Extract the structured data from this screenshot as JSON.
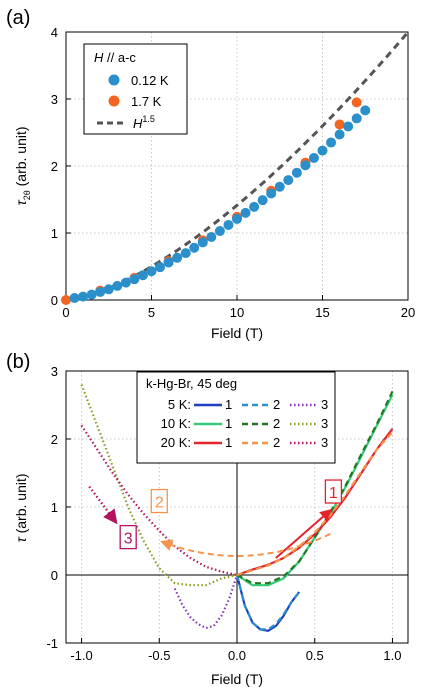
{
  "chart_data": [
    {
      "panel": "(a)",
      "type": "scatter",
      "xlabel": "Field (T)",
      "ylabel_symbol": "τ",
      "ylabel_sub": "2θ",
      "ylabel_unit": " (arb. unit)",
      "xlim": [
        0,
        20
      ],
      "ylim": [
        0,
        4
      ],
      "xticks": [
        "0",
        "5",
        "10",
        "15",
        "20"
      ],
      "yticks": [
        "0",
        "1",
        "2",
        "3",
        "4"
      ],
      "grid": true,
      "legend_position": "top-left",
      "legend_title_italic": "H",
      "legend_title_rest": " // a-c",
      "series": [
        {
          "name": "0.12 K",
          "color": "#2A8FCB",
          "x": [
            0.5,
            1.0,
            1.5,
            2.0,
            2.5,
            3.0,
            3.5,
            4.0,
            4.5,
            5.0,
            5.5,
            6.0,
            6.5,
            7.0,
            7.5,
            8.0,
            8.5,
            9.0,
            9.5,
            10.0,
            10.5,
            11.0,
            11.5,
            12.0,
            12.5,
            13.0,
            13.5,
            14.0,
            14.5,
            15.0,
            15.5,
            16.0,
            16.5,
            17.0,
            17.5
          ],
          "y": [
            0.03,
            0.05,
            0.08,
            0.12,
            0.16,
            0.21,
            0.26,
            0.31,
            0.37,
            0.43,
            0.49,
            0.56,
            0.63,
            0.7,
            0.78,
            0.86,
            0.94,
            1.03,
            1.12,
            1.21,
            1.3,
            1.39,
            1.49,
            1.59,
            1.69,
            1.79,
            1.9,
            2.01,
            2.12,
            2.23,
            2.35,
            2.47,
            2.59,
            2.71,
            2.83
          ]
        },
        {
          "name": "1.7 K",
          "color": "#F26522",
          "x": [
            0.0,
            2.0,
            4.0,
            6.0,
            8.0,
            10.0,
            12.0,
            14.0,
            16.0,
            17.0
          ],
          "y": [
            0.0,
            0.14,
            0.33,
            0.58,
            0.89,
            1.24,
            1.63,
            2.05,
            2.62,
            2.95
          ]
        },
        {
          "name": "H",
          "name_sup": "1.5",
          "color": "#555555",
          "style": "dashed",
          "function": "0.0447*x^1.5"
        }
      ]
    },
    {
      "panel": "(b)",
      "type": "line",
      "xlabel": "Field (T)",
      "ylabel_symbol": "τ",
      "ylabel_unit": " (arb. unit)",
      "xlim": [
        -1.1,
        1.1
      ],
      "ylim": [
        -1,
        3
      ],
      "xticks": [
        "-1.0",
        "-0.5",
        "0.0",
        "0.5",
        "1.0"
      ],
      "yticks": [
        "-1",
        "0",
        "1",
        "2",
        "3"
      ],
      "grid": true,
      "legend_position": "top-center",
      "legend_title": "k-Hg-Br, 45 deg",
      "legend_rows": [
        {
          "temp": "5 K:",
          "labels": [
            "1",
            "2",
            "3"
          ]
        },
        {
          "temp": "10 K:",
          "labels": [
            "1",
            "2",
            "3"
          ]
        },
        {
          "temp": "20 K:",
          "labels": [
            "1",
            "2",
            "3"
          ]
        }
      ],
      "series": [
        {
          "name": "5 K 1",
          "color": "#1F3FBF",
          "style": "solid",
          "x": [
            0.0,
            0.05,
            0.1,
            0.15,
            0.2,
            0.25,
            0.3,
            0.35,
            0.4
          ],
          "y": [
            0.0,
            -0.45,
            -0.7,
            -0.8,
            -0.82,
            -0.75,
            -0.6,
            -0.4,
            -0.25
          ]
        },
        {
          "name": "5 K 2",
          "color": "#2A8FCB",
          "style": "dashed",
          "x": [
            0.0,
            0.05,
            0.1,
            0.15,
            0.2,
            0.25,
            0.3,
            0.35,
            0.4
          ],
          "y": [
            0.0,
            -0.45,
            -0.7,
            -0.8,
            -0.8,
            -0.72,
            -0.58,
            -0.4,
            -0.25
          ]
        },
        {
          "name": "5 K 3",
          "color": "#8833BB",
          "style": "dotted",
          "x": [
            -0.4,
            -0.35,
            -0.3,
            -0.25,
            -0.2,
            -0.15,
            -0.1,
            -0.05,
            0.0
          ],
          "y": [
            -0.2,
            -0.45,
            -0.62,
            -0.72,
            -0.78,
            -0.75,
            -0.6,
            -0.35,
            0.0
          ]
        },
        {
          "name": "10 K 1",
          "color": "#33CC77",
          "style": "solid",
          "x": [
            0.0,
            0.1,
            0.2,
            0.3,
            0.4,
            0.5,
            0.6,
            0.7,
            0.8,
            0.9,
            1.0
          ],
          "y": [
            0.0,
            -0.15,
            -0.15,
            -0.05,
            0.2,
            0.55,
            0.9,
            1.3,
            1.75,
            2.2,
            2.65
          ]
        },
        {
          "name": "10 K 2",
          "color": "#227722",
          "style": "dashed",
          "x": [
            0.0,
            0.1,
            0.2,
            0.3,
            0.4,
            0.5,
            0.6,
            0.7,
            0.8,
            0.9,
            1.0
          ],
          "y": [
            0.0,
            -0.12,
            -0.12,
            -0.02,
            0.2,
            0.55,
            0.92,
            1.32,
            1.78,
            2.22,
            2.7
          ]
        },
        {
          "name": "10 K 3",
          "color": "#8B9A1A",
          "style": "dotted",
          "x": [
            -1.0,
            -0.9,
            -0.8,
            -0.7,
            -0.6,
            -0.5,
            -0.4,
            -0.3,
            -0.2,
            -0.1,
            0.0
          ],
          "y": [
            2.8,
            2.2,
            1.6,
            1.0,
            0.5,
            0.1,
            -0.12,
            -0.15,
            -0.15,
            -0.05,
            0.0
          ]
        },
        {
          "name": "20 K 1",
          "color": "#E5232B",
          "style": "solid",
          "x": [
            0.0,
            0.1,
            0.2,
            0.3,
            0.4,
            0.5,
            0.6,
            0.7,
            0.8,
            0.9,
            1.0
          ],
          "y": [
            0.0,
            0.08,
            0.15,
            0.25,
            0.4,
            0.6,
            0.85,
            1.15,
            1.5,
            1.85,
            2.15
          ]
        },
        {
          "name": "20 K 2",
          "color": "#F5934A",
          "style": "dashed",
          "x": [
            0.0,
            0.1,
            0.2,
            0.3,
            0.4,
            0.5,
            0.6,
            0.7,
            0.8,
            0.9,
            1.0
          ],
          "y": [
            0.0,
            0.07,
            0.14,
            0.25,
            0.42,
            0.62,
            0.88,
            1.18,
            1.52,
            1.85,
            2.1
          ]
        },
        {
          "name": "20 K 3",
          "color": "#B5125F",
          "style": "dotted",
          "x": [
            -1.0,
            -0.9,
            -0.8,
            -0.7,
            -0.6,
            -0.5,
            -0.4,
            -0.3,
            -0.2,
            -0.1,
            0.0
          ],
          "y": [
            2.2,
            1.85,
            1.5,
            1.18,
            0.9,
            0.65,
            0.42,
            0.25,
            0.12,
            0.05,
            0.0
          ]
        }
      ],
      "annotations": [
        {
          "label": "1",
          "color": "#E5232B",
          "arrow": {
            "from": [
              0.25,
              0.25
            ],
            "to": [
              0.6,
              0.95
            ]
          },
          "text_at": [
            0.62,
            1.22
          ],
          "style": "solid"
        },
        {
          "label": "2",
          "color": "#F5934A",
          "arrow_dashed_curve": true,
          "text_at": [
            -0.5,
            1.08
          ],
          "curve_function": "0.25 + 0.9*x^2 from x=-0.5 to x=0.6"
        },
        {
          "label": "3",
          "color": "#B5125F",
          "arrow": {
            "from": [
              -0.95,
              1.3
            ],
            "to": [
              -0.78,
              0.78
            ]
          },
          "text_at": [
            -0.7,
            0.55
          ],
          "style": "dotted"
        }
      ]
    }
  ]
}
